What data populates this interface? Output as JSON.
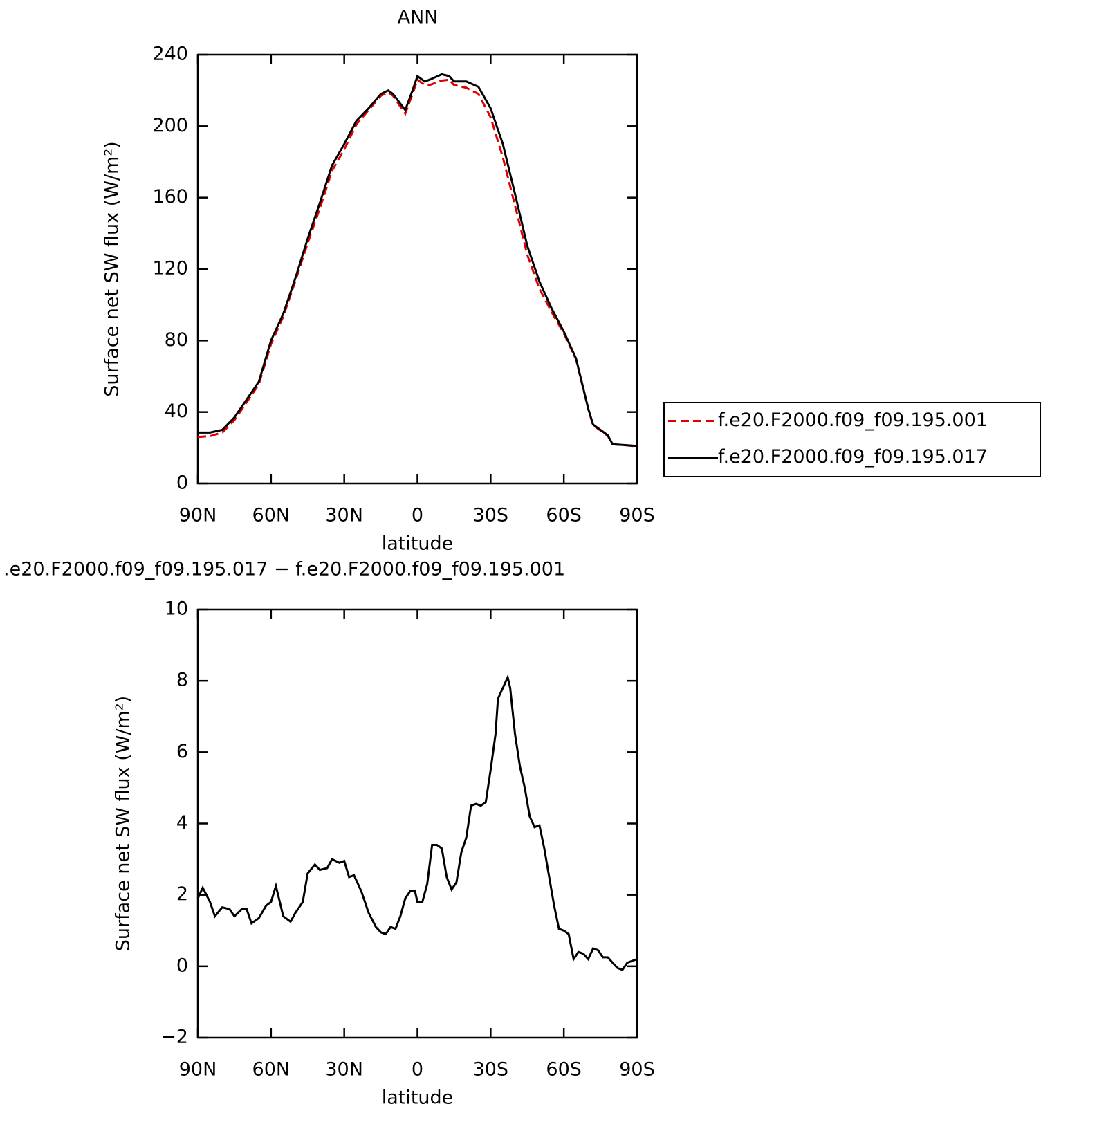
{
  "chart_data": [
    {
      "type": "line",
      "title": "ANN",
      "ylabel": "Surface net SW flux (W/m²)",
      "xlabel": "latitude",
      "x": [
        90,
        85,
        80,
        75,
        70,
        65,
        60,
        55,
        50,
        45,
        40,
        35,
        30,
        25,
        20,
        15,
        12,
        10,
        5,
        2,
        0,
        -3,
        -5,
        -10,
        -13,
        -15,
        -20,
        -25,
        -30,
        -35,
        -40,
        -45,
        -50,
        -55,
        -60,
        -65,
        -70,
        -72,
        -75,
        -78,
        -80,
        -85,
        -90
      ],
      "series": [
        {
          "name": "f.e20.F2000.f09_f09.195.001",
          "color": "#e00000",
          "style": "dashed",
          "values": [
            26,
            26.5,
            28.5,
            35.5,
            45.5,
            55.5,
            78,
            93.5,
            113.5,
            134.5,
            154,
            175,
            187,
            201,
            209,
            217,
            219,
            217,
            207,
            218,
            226,
            223,
            223,
            225.5,
            226,
            223,
            221.5,
            218,
            205,
            182.5,
            155.5,
            128,
            109,
            96,
            84,
            69.5,
            41.8,
            32.5,
            29.7,
            26.7,
            21.9,
            21.5,
            20.8
          ]
        },
        {
          "name": "f.e20.F2000.f09_f09.195.017",
          "color": "#000000",
          "style": "solid",
          "values": [
            28.5,
            28.5,
            30,
            37,
            47,
            57,
            80,
            95,
            115,
            137,
            157,
            178,
            190,
            203,
            210,
            218,
            220,
            218,
            209,
            220,
            228,
            225,
            226,
            229,
            228,
            225,
            225,
            222,
            210,
            190,
            162,
            133,
            113,
            98,
            85,
            70,
            42,
            33,
            30,
            27,
            22,
            21.5,
            21
          ]
        }
      ],
      "xlim": [
        90,
        -90
      ],
      "xticks": [
        {
          "value": 90,
          "label": "90N"
        },
        {
          "value": 60,
          "label": "60N"
        },
        {
          "value": 30,
          "label": "30N"
        },
        0,
        {
          "value": -30,
          "label": "30S"
        },
        {
          "value": -60,
          "label": "60S"
        },
        {
          "value": -90,
          "label": "90S"
        }
      ],
      "ylim": [
        0,
        240
      ],
      "yticks": [
        0,
        40,
        80,
        120,
        160,
        200,
        240
      ],
      "legend": "lower right outside"
    },
    {
      "type": "line",
      "title": ".e20.F2000.f09_f09.195.017 − f.e20.F2000.f09_f09.195.001",
      "ylabel": "Surface net SW flux (W/m²)",
      "xlabel": "latitude",
      "x": [
        90,
        88,
        85,
        83,
        80,
        77,
        75,
        72,
        70,
        68,
        65,
        62,
        60,
        58,
        55,
        52,
        50,
        47,
        45,
        42,
        40,
        37,
        35,
        32,
        30,
        28,
        26,
        23,
        20,
        17,
        15,
        13,
        11,
        9,
        7,
        5,
        3,
        1,
        0,
        -2,
        -4,
        -6,
        -8,
        -10,
        -12,
        -14,
        -16,
        -18,
        -20,
        -22,
        -24,
        -26,
        -28,
        -30,
        -32,
        -33,
        -35,
        -37,
        -38,
        -40,
        -42,
        -44,
        -46,
        -48,
        -50,
        -52,
        -54,
        -56,
        -58,
        -60,
        -62,
        -64,
        -66,
        -68,
        -70,
        -72,
        -74,
        -76,
        -78,
        -80,
        -82,
        -84,
        -86,
        -88,
        -90
      ],
      "series": [
        {
          "color": "#000000",
          "style": "solid",
          "values": [
            1.9,
            2.2,
            1.8,
            1.4,
            1.65,
            1.6,
            1.4,
            1.6,
            1.6,
            1.2,
            1.35,
            1.7,
            1.8,
            2.25,
            1.4,
            1.25,
            1.5,
            1.8,
            2.6,
            2.85,
            2.7,
            2.75,
            3.0,
            2.9,
            2.95,
            2.5,
            2.55,
            2.1,
            1.5,
            1.1,
            0.95,
            0.9,
            1.1,
            1.05,
            1.4,
            1.9,
            2.1,
            2.1,
            1.8,
            1.8,
            2.3,
            3.4,
            3.4,
            3.3,
            2.5,
            2.15,
            2.35,
            3.2,
            3.6,
            4.5,
            4.55,
            4.5,
            4.6,
            5.5,
            6.5,
            7.5,
            7.8,
            8.1,
            7.8,
            6.5,
            5.6,
            5.0,
            4.2,
            3.9,
            3.95,
            3.3,
            2.5,
            1.7,
            1.05,
            1.0,
            0.9,
            0.2,
            0.4,
            0.35,
            0.2,
            0.5,
            0.45,
            0.25,
            0.25,
            0.1,
            -0.05,
            -0.1,
            0.1,
            0.15,
            0.2
          ]
        }
      ],
      "xlim": [
        90,
        -90
      ],
      "xticks": [
        {
          "value": 90,
          "label": "90N"
        },
        {
          "value": 60,
          "label": "60N"
        },
        {
          "value": 30,
          "label": "30N"
        },
        0,
        {
          "value": -30,
          "label": "30S"
        },
        {
          "value": -60,
          "label": "60S"
        },
        {
          "value": -90,
          "label": "90S"
        }
      ],
      "ylim": [
        -2,
        10
      ],
      "yticks": [
        -2,
        0,
        2,
        4,
        6,
        8,
        10
      ]
    }
  ]
}
